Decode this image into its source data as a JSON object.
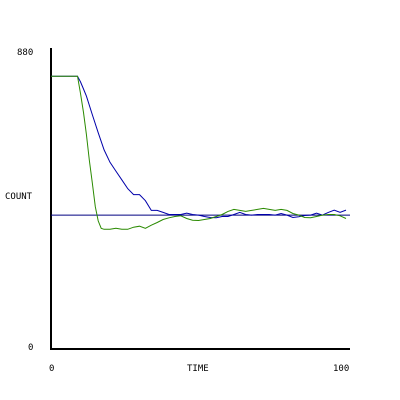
{
  "chart_data": {
    "type": "line",
    "title": "",
    "xlabel": "TIME",
    "ylabel": "COUNT",
    "xlim": [
      0,
      100
    ],
    "ylim": [
      0,
      880
    ],
    "x_tick_labels": [
      "0",
      "100"
    ],
    "y_tick_labels": [
      "880",
      "0"
    ],
    "grid": false,
    "legend": "none",
    "reference_line": {
      "y": 395,
      "color": "#000080"
    },
    "series": [
      {
        "color": "#0000aa",
        "x": [
          0,
          2,
          4,
          6,
          8,
          9,
          10,
          11,
          12,
          14,
          16,
          18,
          20,
          22,
          24,
          26,
          28,
          30,
          32,
          34,
          36,
          38,
          40,
          42,
          44,
          46,
          48,
          50,
          52,
          54,
          56,
          58,
          60,
          62,
          64,
          66,
          68,
          70,
          72,
          74,
          76,
          78,
          80,
          82,
          84,
          86,
          88,
          90,
          92,
          94,
          96,
          98,
          100
        ],
        "y": [
          808,
          808,
          808,
          808,
          808,
          808,
          791,
          770,
          749,
          694,
          640,
          589,
          552,
          526,
          500,
          474,
          456,
          456,
          438,
          409,
          409,
          403,
          397,
          397,
          397,
          401,
          397,
          395,
          391,
          388,
          387,
          391,
          391,
          397,
          403,
          397,
          395,
          397,
          397,
          397,
          395,
          400,
          395,
          388,
          390,
          394,
          395,
          401,
          395,
          403,
          410,
          403,
          410
        ]
      },
      {
        "color": "#2a8a00",
        "x": [
          0,
          2,
          4,
          6,
          8,
          9,
          10,
          11,
          12,
          13,
          14,
          15,
          16,
          17,
          18,
          20,
          22,
          24,
          26,
          28,
          30,
          32,
          34,
          36,
          38,
          40,
          42,
          44,
          46,
          48,
          50,
          52,
          54,
          56,
          58,
          60,
          62,
          64,
          66,
          68,
          70,
          72,
          74,
          76,
          78,
          80,
          82,
          84,
          86,
          88,
          90,
          92,
          94,
          96,
          98,
          100
        ],
        "y": [
          808,
          808,
          808,
          808,
          808,
          808,
          757,
          700,
          635,
          559,
          491,
          420,
          378,
          356,
          353,
          353,
          356,
          353,
          353,
          359,
          362,
          356,
          365,
          373,
          382,
          387,
          391,
          393,
          385,
          380,
          379,
          382,
          385,
          391,
          397,
          406,
          412,
          409,
          406,
          409,
          412,
          415,
          412,
          409,
          412,
          409,
          400,
          395,
          388,
          387,
          391,
          395,
          397,
          397,
          393,
          385
        ]
      }
    ]
  }
}
